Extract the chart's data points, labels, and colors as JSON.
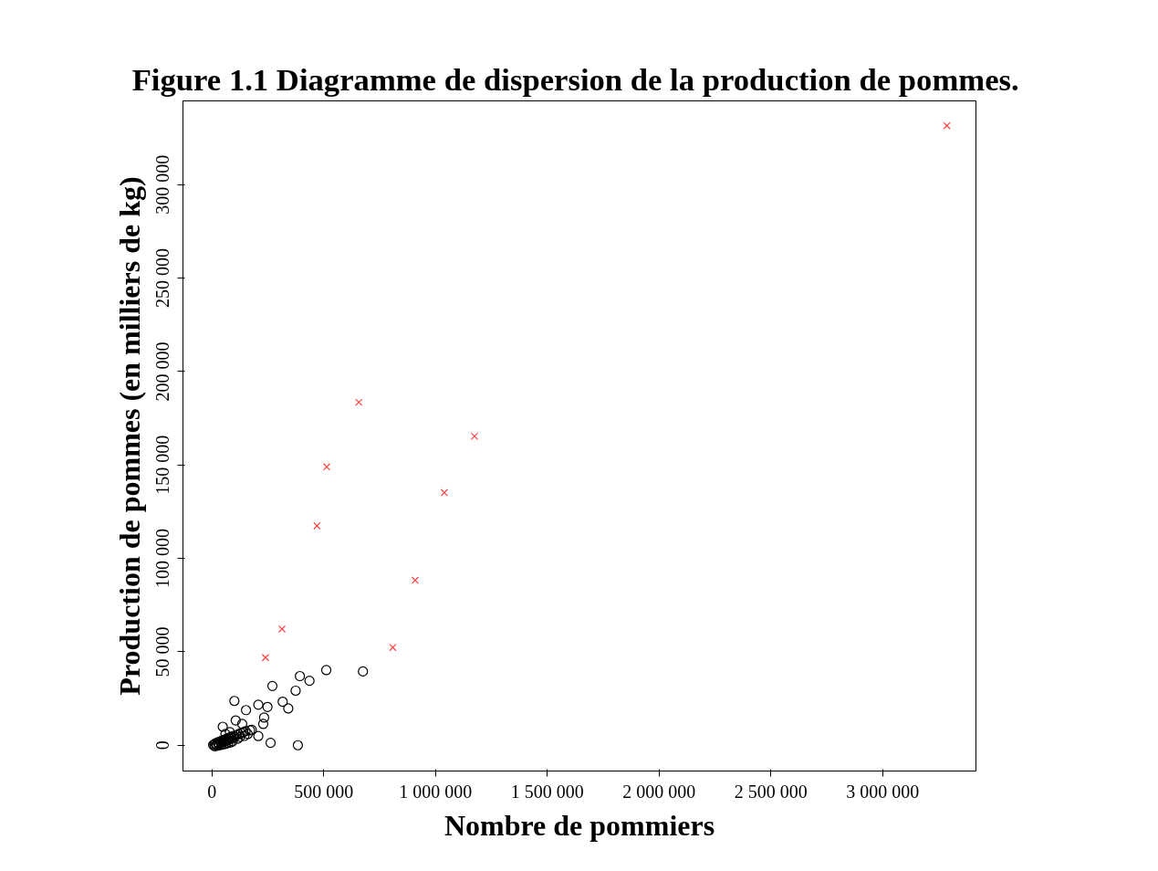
{
  "chart_data": {
    "type": "scatter",
    "title": "Figure 1.1  Diagramme de dispersion de la production de pommes.",
    "xlabel": "Nombre de pommiers",
    "ylabel": "Production de pommes (en milliers de kg)",
    "xlim": [
      -130000,
      3417000
    ],
    "ylim": [
      -13800,
      344800
    ],
    "xticks": [
      0,
      {
        "value": 500000,
        "label": "500 000"
      },
      {
        "value": 1000000,
        "label": "1 000 000"
      },
      {
        "value": 1500000,
        "label": "1 500 000"
      },
      {
        "value": 2000000,
        "label": "2 000 000"
      },
      {
        "value": 2500000,
        "label": "2 500 000"
      },
      {
        "value": 3000000,
        "label": "3 000 000"
      }
    ],
    "yticks": [
      0,
      {
        "value": 50000,
        "label": "50 000"
      },
      {
        "value": 100000,
        "label": "100 000"
      },
      {
        "value": 150000,
        "label": "150 000"
      },
      {
        "value": 200000,
        "label": "200 000"
      },
      {
        "value": 250000,
        "label": "250 000"
      },
      {
        "value": 300000,
        "label": "300 000"
      }
    ],
    "grid": false,
    "series": [
      {
        "color": "#000000",
        "marker": "circle",
        "x": [
          511000,
          675000,
          393000,
          436000,
          270000,
          374000,
          100000,
          316000,
          341000,
          207000,
          248000,
          152000,
          233000,
          229000,
          262000,
          384000,
          207000,
          178000,
          135000,
          106000,
          48000,
          5000,
          10000,
          15000,
          20000,
          25000,
          30000,
          35000,
          40000,
          45000,
          50000,
          55000,
          60000,
          65000,
          70000,
          75000,
          80000,
          85000,
          90000,
          95000,
          100000,
          110000,
          120000,
          130000,
          140000,
          150000,
          160000,
          170000,
          12000,
          22000,
          32000,
          42000,
          52000,
          62000,
          72000,
          82000,
          92000,
          115000,
          125000,
          145000,
          60000,
          80000
        ],
        "values": [
          40200,
          39500,
          37000,
          34500,
          31700,
          29200,
          23700,
          23300,
          19700,
          21700,
          20500,
          18800,
          14800,
          11400,
          1300,
          0,
          4900,
          8200,
          11400,
          13300,
          9900,
          100,
          500,
          1000,
          300,
          1500,
          800,
          2000,
          1200,
          2500,
          1800,
          3000,
          2200,
          3500,
          2800,
          4000,
          3300,
          4500,
          3800,
          5000,
          4200,
          5500,
          6000,
          6500,
          7000,
          7500,
          6000,
          8000,
          -500,
          -300,
          0,
          200,
          500,
          800,
          1200,
          1500,
          2000,
          3500,
          4500,
          5000,
          6000,
          7000
        ]
      },
      {
        "color": "#ff4040",
        "marker": "cross",
        "x": [
          3287000,
          656500,
          1174000,
          513000,
          1039000,
          469600,
          908700,
          313000,
          239000,
          808700
        ],
        "values": [
          331500,
          183500,
          165300,
          149000,
          135200,
          117400,
          88300,
          62200,
          46900,
          52300
        ]
      }
    ]
  }
}
